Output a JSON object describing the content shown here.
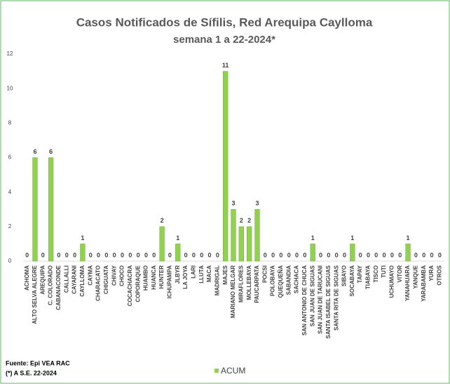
{
  "chart_data": {
    "type": "bar",
    "title": "Casos Notificados de Sífilis, Red Arequipa Caylloma",
    "subtitle": "semana 1 a 22-2024*",
    "categories": [
      "ACHOMA",
      "ALTO SELVA ALEGRE",
      "AREQUIPA",
      "C. COLORADO",
      "CABANACONDE",
      "CALLALLI",
      "CAYARANI",
      "CAYLLOMA",
      "CAYMA",
      "CHARACATO",
      "CHIGUATA",
      "CHIVAY",
      "CHOCO",
      "COCACHACRA",
      "COPORAQUE",
      "HUAMBO",
      "HUANCA",
      "HUNTER",
      "ICHUPAMPA",
      "JLBYR",
      "LA JOYA",
      "LARI",
      "LLUTA",
      "MACA",
      "MADRIGAL",
      "MAJES",
      "MARIANO MELGAR",
      "MIRAFLORES",
      "MOLLEBAYA",
      "PAUCARPATA",
      "POCSI",
      "POLOBAYA",
      "QUEQUEÑA",
      "SABANDIA",
      "SACHACA",
      "SAN ANTONIO DE CHUCA",
      "SAN JUAN DE SIGUAS",
      "SAN JUAN DE TARUCANI",
      "SANTA ISABEL DE SIGUAS",
      "SANTA RITA DE SIGUAS",
      "SIBAYO",
      "SOCABAYA",
      "TAPAY",
      "TIABAYA",
      "TISCO",
      "TUTI",
      "UCHUMAYO",
      "VITOR",
      "YANAHUARA",
      "YANQUE",
      "YARABAMBA",
      "YURA",
      "OTROS"
    ],
    "series": [
      {
        "name": "ACUM",
        "color": "#92d050",
        "values": [
          0,
          6,
          0,
          6,
          0,
          0,
          0,
          1,
          0,
          0,
          0,
          0,
          0,
          0,
          0,
          0,
          0,
          2,
          0,
          1,
          0,
          0,
          0,
          0,
          0,
          11,
          3,
          2,
          2,
          3,
          0,
          0,
          0,
          0,
          0,
          0,
          1,
          0,
          0,
          0,
          0,
          1,
          0,
          0,
          0,
          0,
          0,
          0,
          1,
          0,
          0,
          0,
          0
        ]
      }
    ],
    "ylim": [
      0,
      12
    ],
    "yticks": [
      0,
      2,
      4,
      6,
      8,
      10,
      12
    ],
    "grid": false,
    "legend": "bottom",
    "notes": [
      "Fuente: Epi VEA RAC",
      "(*) A S.E. 22-2024"
    ]
  }
}
